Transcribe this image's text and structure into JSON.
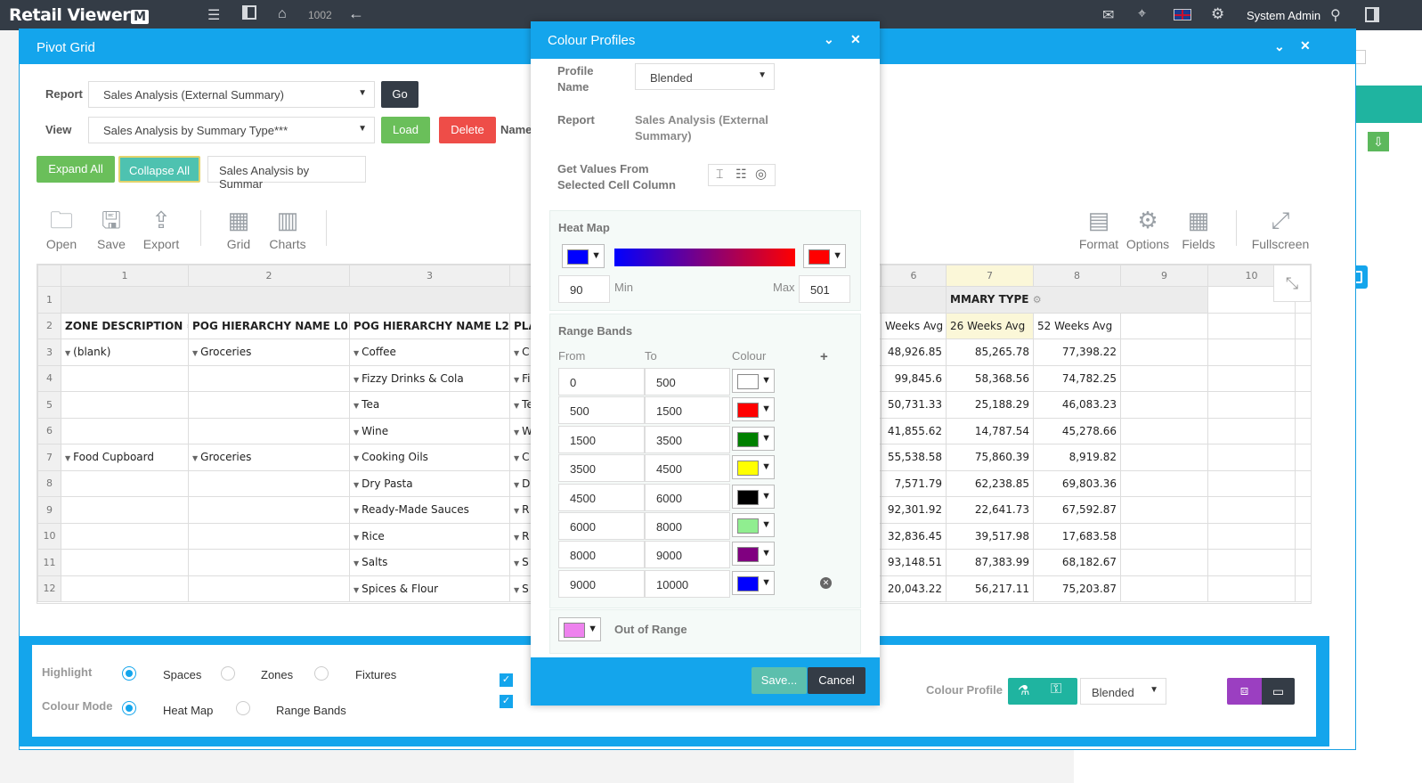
{
  "topbar": {
    "brand": "Retail Viewer",
    "brand_mark": "M",
    "number": "1002",
    "user": "System Admin"
  },
  "pivot": {
    "title": "Pivot Grid",
    "report_label": "Report",
    "report_value": "Sales Analysis (External Summary)",
    "go": "Go",
    "view_label": "View",
    "view_value": "Sales Analysis by Summary Type***",
    "load": "Load",
    "delete": "Delete",
    "name_label": "Name",
    "expand_all": "Expand All",
    "collapse_all": "Collapse All",
    "name_value": "Sales Analysis by Summar",
    "tools_left": [
      "Open",
      "Save",
      "Export",
      "Grid",
      "Charts"
    ],
    "tools_right": [
      "Format",
      "Options",
      "Fields",
      "Fullscreen"
    ],
    "col_numbers": [
      "1",
      "2",
      "3",
      "6",
      "7",
      "8",
      "9",
      "10"
    ],
    "headers": [
      "ZONE DESCRIPTION",
      "POG HIERARCHY NAME L0",
      "POG HIERARCHY NAME L2",
      "PLA"
    ],
    "summary_type_header": "MMARY TYPE",
    "right_headers": [
      "Weeks Avg",
      "26 Weeks Avg",
      "52 Weeks Avg"
    ],
    "rows": [
      {
        "n": "3",
        "zone": "(blank)",
        "l0": "Groceries",
        "l2": "Coffee",
        "pla": "C",
        "a": "48,926.85",
        "b": "85,265.78",
        "c": "77,398.22"
      },
      {
        "n": "4",
        "zone": "",
        "l0": "",
        "l2": "Fizzy Drinks & Cola",
        "pla": "Fi",
        "a": "99,845.6",
        "b": "58,368.56",
        "c": "74,782.25"
      },
      {
        "n": "5",
        "zone": "",
        "l0": "",
        "l2": "Tea",
        "pla": "Te",
        "a": "50,731.33",
        "b": "25,188.29",
        "c": "46,083.23"
      },
      {
        "n": "6",
        "zone": "",
        "l0": "",
        "l2": "Wine",
        "pla": "W",
        "a": "41,855.62",
        "b": "14,787.54",
        "c": "45,278.66"
      },
      {
        "n": "7",
        "zone": "Food Cupboard",
        "l0": "Groceries",
        "l2": "Cooking Oils",
        "pla": "C",
        "a": "55,538.58",
        "b": "75,860.39",
        "c": "8,919.82"
      },
      {
        "n": "8",
        "zone": "",
        "l0": "",
        "l2": "Dry Pasta",
        "pla": "D",
        "a": "7,571.79",
        "b": "62,238.85",
        "c": "69,803.36"
      },
      {
        "n": "9",
        "zone": "",
        "l0": "",
        "l2": "Ready-Made Sauces",
        "pla": "R",
        "a": "92,301.92",
        "b": "22,641.73",
        "c": "67,592.87"
      },
      {
        "n": "10",
        "zone": "",
        "l0": "",
        "l2": "Rice",
        "pla": "R",
        "a": "32,836.45",
        "b": "39,517.98",
        "c": "17,683.58"
      },
      {
        "n": "11",
        "zone": "",
        "l0": "",
        "l2": "Salts",
        "pla": "S",
        "a": "93,148.51",
        "b": "87,383.99",
        "c": "68,182.67"
      },
      {
        "n": "12",
        "zone": "",
        "l0": "",
        "l2": "Spices & Flour",
        "pla": "S",
        "a": "20,043.22",
        "b": "56,217.11",
        "c": "75,203.87"
      }
    ]
  },
  "bottom": {
    "highlight_label": "Highlight",
    "highlight_options": [
      "Spaces",
      "Zones",
      "Fixtures"
    ],
    "colour_mode_label": "Colour Mode",
    "colour_mode_options": [
      "Heat Map",
      "Range Bands"
    ],
    "colour_profile_label": "Colour Profile",
    "colour_profile_value": "Blended"
  },
  "modal": {
    "title": "Colour Profiles",
    "profile_name_label": "Profile Name",
    "profile_name_value": "Blended",
    "report_label": "Report",
    "report_value": "Sales Analysis (External Summary)",
    "get_values_label": "Get Values From Selected Cell Column",
    "heat_map_label": "Heat Map",
    "heat_min_colour": "#0000ff",
    "heat_max_colour": "#ff0000",
    "min_value": "90",
    "min_label": "Min",
    "max_label": "Max",
    "max_value": "501",
    "range_bands_label": "Range Bands",
    "from_label": "From",
    "to_label": "To",
    "colour_label": "Colour",
    "bands": [
      {
        "from": "0",
        "to": "500",
        "colour": "#ffffff"
      },
      {
        "from": "500",
        "to": "1500",
        "colour": "#ff0000"
      },
      {
        "from": "1500",
        "to": "3500",
        "colour": "#008000"
      },
      {
        "from": "3500",
        "to": "4500",
        "colour": "#ffff00"
      },
      {
        "from": "4500",
        "to": "6000",
        "colour": "#000000"
      },
      {
        "from": "6000",
        "to": "8000",
        "colour": "#90ee90"
      },
      {
        "from": "8000",
        "to": "9000",
        "colour": "#800080"
      },
      {
        "from": "9000",
        "to": "10000",
        "colour": "#0000ff"
      }
    ],
    "out_of_range_label": "Out of Range",
    "out_of_range_colour": "#ee82ee",
    "save": "Save...",
    "cancel": "Cancel"
  }
}
